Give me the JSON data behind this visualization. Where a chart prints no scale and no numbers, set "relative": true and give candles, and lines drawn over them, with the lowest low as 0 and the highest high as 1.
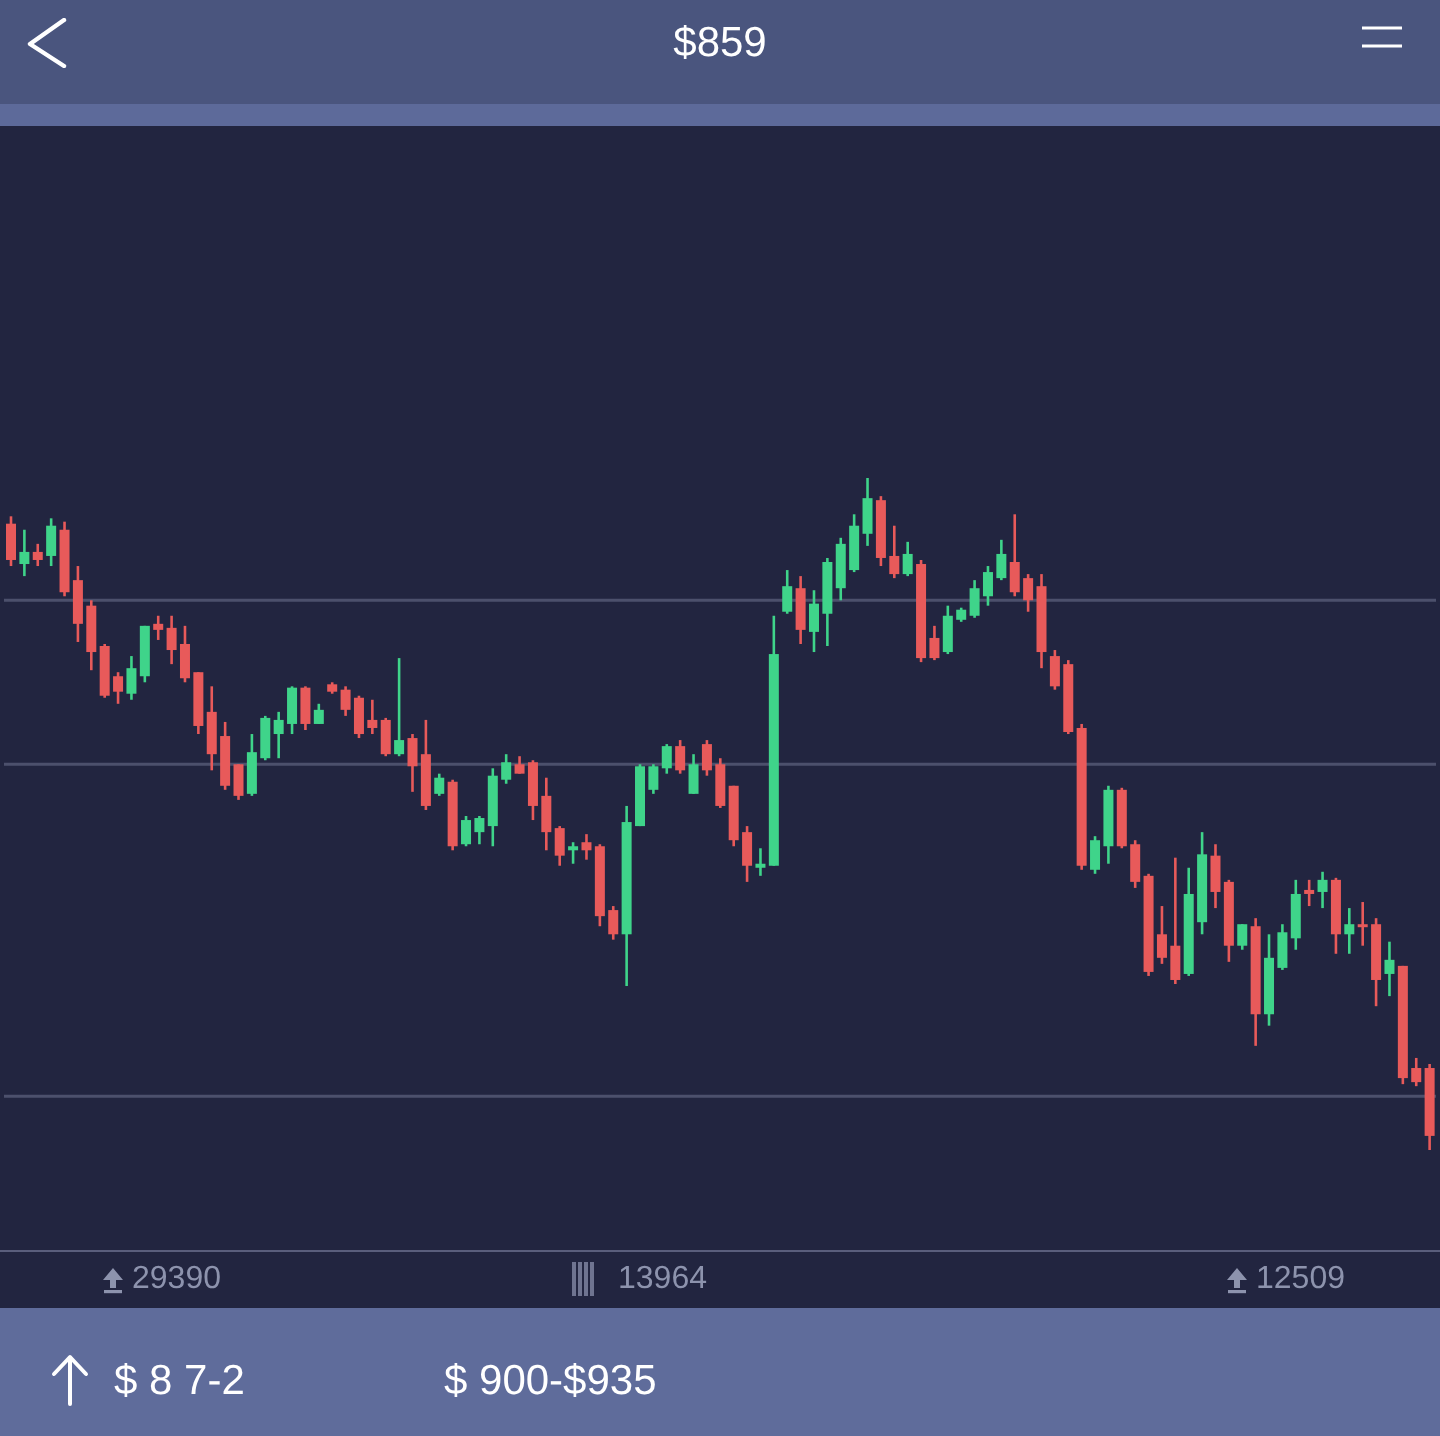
{
  "chart_data": {
    "type": "candlestick",
    "title": "$859",
    "relative": true,
    "categories": [
      null,
      null,
      null,
      null,
      null,
      null,
      null,
      null,
      null,
      null,
      null,
      null,
      null,
      null,
      null,
      null,
      null,
      null,
      null,
      null,
      null,
      null,
      null,
      null,
      null,
      null,
      null,
      null,
      null,
      null,
      null,
      null,
      null,
      null,
      null,
      null,
      null,
      null,
      null,
      null,
      null,
      null,
      null,
      null,
      null,
      null,
      null,
      null,
      null,
      null,
      null,
      null,
      null,
      null,
      null,
      null,
      null,
      null,
      null,
      null,
      null,
      null,
      null,
      null,
      null,
      null,
      null,
      null,
      null,
      null,
      null,
      null,
      null,
      null,
      null,
      null,
      null,
      null,
      null,
      null,
      null,
      null,
      null,
      null,
      null,
      null,
      null,
      null,
      null,
      null,
      null,
      null,
      null,
      null,
      null,
      null,
      null,
      null,
      null,
      null,
      null,
      null,
      null,
      null,
      null,
      null,
      null
    ],
    "ohlc": [
      [
        0.932,
        0.943,
        0.869,
        0.878
      ],
      [
        0.872,
        0.923,
        0.854,
        0.89
      ],
      [
        0.89,
        0.902,
        0.869,
        0.878
      ],
      [
        0.884,
        0.94,
        0.869,
        0.929
      ],
      [
        0.923,
        0.935,
        0.824,
        0.83
      ],
      [
        0.848,
        0.869,
        0.756,
        0.783
      ],
      [
        0.81,
        0.818,
        0.714,
        0.741
      ],
      [
        0.75,
        0.753,
        0.673,
        0.676
      ],
      [
        0.705,
        0.711,
        0.664,
        0.682
      ],
      [
        0.679,
        0.735,
        0.67,
        0.717
      ],
      [
        0.705,
        0.78,
        0.696,
        0.78
      ],
      [
        0.783,
        0.795,
        0.759,
        0.774
      ],
      [
        0.777,
        0.795,
        0.723,
        0.744
      ],
      [
        0.753,
        0.78,
        0.696,
        0.702
      ],
      [
        0.711,
        0.711,
        0.619,
        0.631
      ],
      [
        0.652,
        0.69,
        0.565,
        0.589
      ],
      [
        0.616,
        0.637,
        0.536,
        0.542
      ],
      [
        0.574,
        0.574,
        0.521,
        0.527
      ],
      [
        0.53,
        0.619,
        0.527,
        0.592
      ],
      [
        0.583,
        0.646,
        0.58,
        0.643
      ],
      [
        0.619,
        0.652,
        0.583,
        0.64
      ],
      [
        0.634,
        0.69,
        0.619,
        0.688
      ],
      [
        0.688,
        0.69,
        0.625,
        0.634
      ],
      [
        0.634,
        0.664,
        0.634,
        0.655
      ],
      [
        0.693,
        0.696,
        0.679,
        0.682
      ],
      [
        0.685,
        0.69,
        0.646,
        0.655
      ],
      [
        0.673,
        0.676,
        0.613,
        0.619
      ],
      [
        0.64,
        0.67,
        0.619,
        0.628
      ],
      [
        0.64,
        0.643,
        0.586,
        0.589
      ],
      [
        0.589,
        0.732,
        0.586,
        0.61
      ],
      [
        0.613,
        0.619,
        0.533,
        0.571
      ],
      [
        0.589,
        0.64,
        0.506,
        0.512
      ],
      [
        0.53,
        0.56,
        0.527,
        0.554
      ],
      [
        0.548,
        0.551,
        0.446,
        0.452
      ],
      [
        0.455,
        0.497,
        0.452,
        0.491
      ],
      [
        0.473,
        0.497,
        0.455,
        0.494
      ],
      [
        0.482,
        0.568,
        0.452,
        0.557
      ],
      [
        0.551,
        0.589,
        0.545,
        0.577
      ],
      [
        0.574,
        0.586,
        0.56,
        0.56
      ],
      [
        0.577,
        0.58,
        0.491,
        0.512
      ],
      [
        0.527,
        0.554,
        0.446,
        0.473
      ],
      [
        0.479,
        0.482,
        0.423,
        0.438
      ],
      [
        0.446,
        0.458,
        0.426,
        0.452
      ],
      [
        0.458,
        0.47,
        0.432,
        0.446
      ],
      [
        0.452,
        0.455,
        0.333,
        0.348
      ],
      [
        0.357,
        0.363,
        0.313,
        0.321
      ],
      [
        0.321,
        0.512,
        0.244,
        0.488
      ],
      [
        0.482,
        0.574,
        0.482,
        0.571
      ],
      [
        0.536,
        0.574,
        0.53,
        0.571
      ],
      [
        0.568,
        0.604,
        0.56,
        0.601
      ],
      [
        0.601,
        0.61,
        0.56,
        0.565
      ],
      [
        0.53,
        0.589,
        0.53,
        0.574
      ],
      [
        0.604,
        0.61,
        0.557,
        0.565
      ],
      [
        0.574,
        0.583,
        0.509,
        0.512
      ],
      [
        0.542,
        0.542,
        0.452,
        0.461
      ],
      [
        0.473,
        0.482,
        0.399,
        0.423
      ],
      [
        0.42,
        0.449,
        0.408,
        0.426
      ],
      [
        0.423,
        0.795,
        0.423,
        0.738
      ],
      [
        0.801,
        0.863,
        0.798,
        0.839
      ],
      [
        0.836,
        0.854,
        0.753,
        0.774
      ],
      [
        0.771,
        0.833,
        0.741,
        0.813
      ],
      [
        0.798,
        0.881,
        0.75,
        0.875
      ],
      [
        0.836,
        0.911,
        0.818,
        0.902
      ],
      [
        0.863,
        0.946,
        0.86,
        0.929
      ],
      [
        0.917,
        1,
        0.899,
        0.97
      ],
      [
        0.967,
        0.973,
        0.869,
        0.881
      ],
      [
        0.884,
        0.929,
        0.851,
        0.857
      ],
      [
        0.857,
        0.905,
        0.854,
        0.887
      ],
      [
        0.872,
        0.878,
        0.726,
        0.732
      ],
      [
        0.762,
        0.78,
        0.729,
        0.732
      ],
      [
        0.741,
        0.81,
        0.738,
        0.795
      ],
      [
        0.789,
        0.807,
        0.786,
        0.804
      ],
      [
        0.795,
        0.848,
        0.792,
        0.836
      ],
      [
        0.824,
        0.869,
        0.81,
        0.86
      ],
      [
        0.851,
        0.908,
        0.848,
        0.887
      ],
      [
        0.875,
        0.946,
        0.824,
        0.83
      ],
      [
        0.851,
        0.857,
        0.801,
        0.818
      ],
      [
        0.839,
        0.857,
        0.717,
        0.741
      ],
      [
        0.735,
        0.744,
        0.685,
        0.69
      ],
      [
        0.723,
        0.729,
        0.619,
        0.622
      ],
      [
        0.628,
        0.634,
        0.417,
        0.423
      ],
      [
        0.417,
        0.467,
        0.411,
        0.461
      ],
      [
        0.452,
        0.542,
        0.426,
        0.536
      ],
      [
        0.536,
        0.539,
        0.449,
        0.452
      ],
      [
        0.455,
        0.461,
        0.39,
        0.399
      ],
      [
        0.408,
        0.411,
        0.259,
        0.265
      ],
      [
        0.321,
        0.363,
        0.277,
        0.286
      ],
      [
        0.304,
        0.435,
        0.247,
        0.253
      ],
      [
        0.262,
        0.42,
        0.259,
        0.381
      ],
      [
        0.339,
        0.473,
        0.321,
        0.44
      ],
      [
        0.438,
        0.455,
        0.36,
        0.384
      ],
      [
        0.399,
        0.402,
        0.28,
        0.304
      ],
      [
        0.304,
        0.336,
        0.298,
        0.336
      ],
      [
        0.333,
        0.345,
        0.155,
        0.202
      ],
      [
        0.202,
        0.321,
        0.185,
        0.286
      ],
      [
        0.271,
        0.336,
        0.268,
        0.324
      ],
      [
        0.315,
        0.402,
        0.298,
        0.381
      ],
      [
        0.387,
        0.402,
        0.363,
        0.381
      ],
      [
        0.384,
        0.414,
        0.36,
        0.402
      ],
      [
        0.402,
        0.405,
        0.292,
        0.321
      ],
      [
        0.321,
        0.36,
        0.292,
        0.336
      ],
      [
        0.336,
        0.369,
        0.304,
        0.333
      ],
      [
        0.336,
        0.345,
        0.214,
        0.253
      ],
      [
        0.262,
        0.31,
        0.229,
        0.283
      ],
      [
        0.274,
        0.274,
        0.098,
        0.107
      ],
      [
        0.122,
        0.137,
        0.095,
        0.101
      ],
      [
        0.122,
        0.128,
        0,
        0.021
      ]
    ],
    "colors": [
      "#e85a5a",
      "#3fd48a",
      "#e85a5a",
      "#3fd48a",
      "#e85a5a",
      "#e85a5a",
      "#e85a5a",
      "#e85a5a",
      "#e85a5a",
      "#3fd48a",
      "#3fd48a",
      "#e85a5a",
      "#e85a5a",
      "#e85a5a",
      "#e85a5a",
      "#e85a5a",
      "#e85a5a",
      "#e85a5a",
      "#3fd48a",
      "#3fd48a",
      "#3fd48a",
      "#3fd48a",
      "#e85a5a",
      "#3fd48a",
      "#e85a5a",
      "#e85a5a",
      "#e85a5a",
      "#e85a5a",
      "#e85a5a",
      "#3fd48a",
      "#e85a5a",
      "#e85a5a",
      "#3fd48a",
      "#e85a5a",
      "#3fd48a",
      "#3fd48a",
      "#3fd48a",
      "#3fd48a",
      "#e85a5a",
      "#e85a5a",
      "#e85a5a",
      "#e85a5a",
      "#3fd48a",
      "#e85a5a",
      "#e85a5a",
      "#e85a5a",
      "#3fd48a",
      "#3fd48a",
      "#3fd48a",
      "#3fd48a",
      "#e85a5a",
      "#3fd48a",
      "#e85a5a",
      "#e85a5a",
      "#e85a5a",
      "#e85a5a",
      "#3fd48a",
      "#3fd48a",
      "#3fd48a",
      "#e85a5a",
      "#3fd48a",
      "#3fd48a",
      "#3fd48a",
      "#3fd48a",
      "#3fd48a",
      "#e85a5a",
      "#e85a5a",
      "#3fd48a",
      "#e85a5a",
      "#e85a5a",
      "#3fd48a",
      "#3fd48a",
      "#3fd48a",
      "#3fd48a",
      "#3fd48a",
      "#e85a5a",
      "#e85a5a",
      "#e85a5a",
      "#e85a5a",
      "#e85a5a",
      "#e85a5a",
      "#3fd48a",
      "#3fd48a",
      "#e85a5a",
      "#e85a5a",
      "#e85a5a",
      "#e85a5a",
      "#e85a5a",
      "#3fd48a",
      "#3fd48a",
      "#e85a5a",
      "#e85a5a",
      "#3fd48a",
      "#e85a5a",
      "#3fd48a",
      "#3fd48a",
      "#3fd48a",
      "#e85a5a",
      "#3fd48a",
      "#e85a5a",
      "#3fd48a",
      "#e85a5a",
      "#e85a5a",
      "#3fd48a",
      "#e85a5a",
      "#e85a5a",
      "#e85a5a"
    ],
    "ref_lines": [
      {
        "axis": "y",
        "value": 0.818,
        "color": "#4c506c"
      },
      {
        "axis": "y",
        "value": 0.574,
        "color": "#4c506c"
      },
      {
        "axis": "y",
        "value": 0.08,
        "color": "#4c506c"
      }
    ],
    "annotations": [
      "29390",
      "13964",
      "12509",
      "$ 8 7-2",
      "$ 900-$935"
    ]
  }
}
